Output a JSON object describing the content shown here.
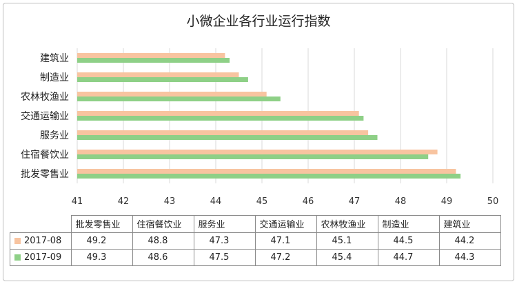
{
  "chart_data": {
    "type": "bar",
    "orientation": "horizontal",
    "title": "小微企业各行业运行指数",
    "categories": [
      "建筑业",
      "制造业",
      "农林牧渔业",
      "交通运输业",
      "服务业",
      "住宿餐饮业",
      "批发零售业"
    ],
    "series": [
      {
        "name": "2017-08",
        "color": "#f8c4a0",
        "values": [
          44.2,
          44.5,
          45.1,
          47.1,
          47.3,
          48.8,
          49.2
        ]
      },
      {
        "name": "2017-09",
        "color": "#8ed087",
        "values": [
          44.3,
          44.7,
          45.4,
          47.2,
          47.5,
          48.6,
          49.3
        ]
      }
    ],
    "xlim": [
      41,
      50
    ],
    "xticks": [
      "41",
      "42",
      "43",
      "44",
      "45",
      "46",
      "47",
      "48",
      "49",
      "50"
    ],
    "grid": true,
    "legend": "data-table"
  },
  "table": {
    "columns": [
      "批发零售业",
      "住宿餐饮业",
      "服务业",
      "交通运输业",
      "农林牧渔业",
      "制造业",
      "建筑业"
    ],
    "rows": [
      {
        "label": "2017-08",
        "color": "#f8c4a0",
        "values": [
          "49.2",
          "48.8",
          "47.3",
          "47.1",
          "45.1",
          "44.5",
          "44.2"
        ]
      },
      {
        "label": "2017-09",
        "color": "#8ed087",
        "values": [
          "49.3",
          "48.6",
          "47.5",
          "47.2",
          "45.4",
          "44.7",
          "44.3"
        ]
      }
    ]
  }
}
